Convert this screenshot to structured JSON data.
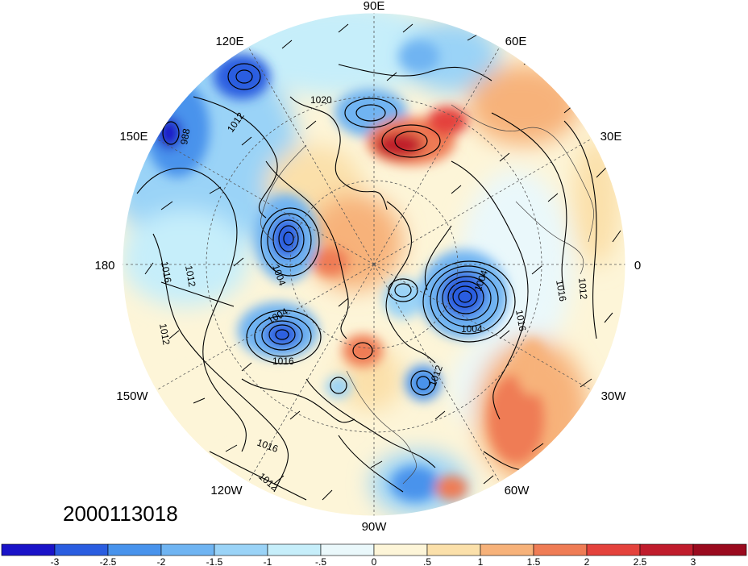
{
  "map": {
    "projection": "north-polar-stereographic",
    "timestamp": "2000113018",
    "longitude_labels": [
      "90E",
      "60E",
      "30E",
      "0",
      "30W",
      "60W",
      "90W",
      "120W",
      "150W",
      "180",
      "150E",
      "120E"
    ],
    "contour_labels": [
      "1020",
      "1012",
      "988",
      "1016",
      "1012",
      "1004",
      "1004",
      "1016",
      "1012",
      "1016",
      "1012",
      "1016",
      "1012",
      "1004",
      "1004",
      "1016",
      "1012"
    ],
    "background_color": "#ffffff"
  },
  "colorbar": {
    "ticks": [
      "-3",
      "-2.5",
      "-2",
      "-1.5",
      "-1",
      "-.5",
      "0",
      ".5",
      "1",
      "1.5",
      "2",
      "2.5",
      "3"
    ],
    "colors": [
      "#1a13c8",
      "#2a5de0",
      "#4893ec",
      "#6fb4f2",
      "#9ad3f7",
      "#c6eefa",
      "#eaf8fb",
      "#fdf5d8",
      "#fbe0aa",
      "#f7b27a",
      "#ef7c55",
      "#e4423c",
      "#c01c2c",
      "#9a0a1e"
    ]
  }
}
